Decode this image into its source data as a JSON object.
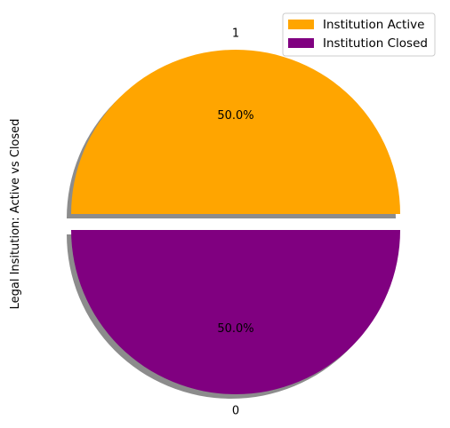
{
  "chart_data": {
    "type": "pie",
    "ylabel": "Legal Insitution: Active vs Closed",
    "slices": [
      {
        "label": "1",
        "value": 50.0,
        "pct_label": "50.0%",
        "color": "#FFA500",
        "legend": "Institution Active"
      },
      {
        "label": "0",
        "value": 50.0,
        "pct_label": "50.0%",
        "color": "#800080",
        "legend": "Institution Closed"
      }
    ],
    "shadow": true,
    "explode": true,
    "legend_position": "top-right"
  }
}
